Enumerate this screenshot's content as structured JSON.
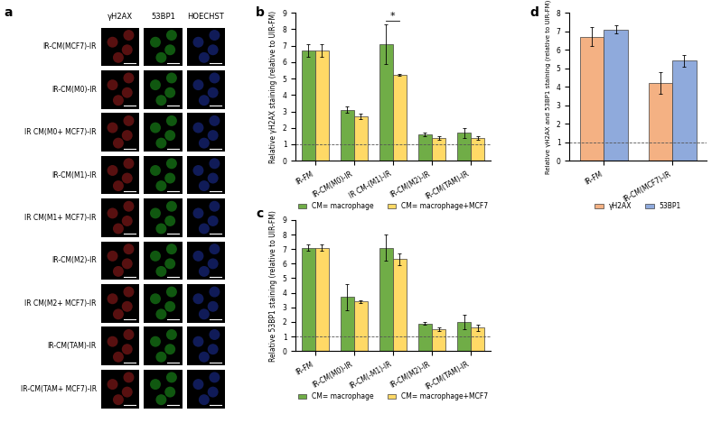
{
  "panel_labels": [
    "a",
    "b",
    "c",
    "d"
  ],
  "images": {
    "columns": [
      "γH2AX",
      "53BP1",
      "HOECHST"
    ],
    "rows": [
      "IR-CM(MCF7)-IR",
      "IR-CM(M0)-IR",
      "IR CM(M0+ MCF7)-IR",
      "IR-CM(M1)-IR",
      "IR CM(M1+ MCF7)-IR",
      "IR-CM(M2)-IR",
      "IR CM(M2+ MCF7)-IR",
      "IR-CM(TAM)-IR",
      "IR-CM(TAM+ MCF7)-IR"
    ]
  },
  "chart_data": [
    {
      "type": "bar",
      "y_label": "Relative γH2AX staining (relative to UIR-FM)",
      "categories": [
        "IR-FM",
        "IR-CM(M0)-IR",
        "IR CM-(M1)-IR",
        "IR-CM(M2)-IR",
        "IR-CM(TAM)-IR"
      ],
      "series": [
        {
          "name": "CM= macrophage",
          "color": "#70ad47",
          "values": [
            6.7,
            3.1,
            7.1,
            1.6,
            1.7
          ],
          "errors": [
            0.4,
            0.2,
            1.2,
            0.1,
            0.3
          ]
        },
        {
          "name": "CM= macrophage+MCF7",
          "color": "#ffd966",
          "values": [
            6.7,
            2.7,
            5.2,
            1.4,
            1.4
          ],
          "errors": [
            0.4,
            0.15,
            0.05,
            0.1,
            0.1
          ]
        }
      ],
      "ylim": [
        0,
        9
      ],
      "yticks": [
        0,
        1,
        2,
        3,
        4,
        5,
        6,
        7,
        8,
        9
      ],
      "legend": "bottom",
      "reference_line": 1,
      "annotations": [
        {
          "text": "*",
          "category": "IR CM-(M1)-IR",
          "y": 8.5
        }
      ]
    },
    {
      "type": "bar",
      "y_label": "Relative 53BP1 staining (relative to UIR-FM)",
      "categories": [
        "IR-FM",
        "IR-CM(M0)-IR",
        "IR-CM(-M1)-IR",
        "IR-CM(M2)-IR",
        "IR-CM(TAM)-IR"
      ],
      "series": [
        {
          "name": "CM= macrophage",
          "color": "#70ad47",
          "values": [
            7.1,
            3.7,
            7.1,
            1.9,
            2.0
          ],
          "errors": [
            0.2,
            0.9,
            0.9,
            0.1,
            0.5
          ]
        },
        {
          "name": "CM= macrophage+MCF7",
          "color": "#ffd966",
          "values": [
            7.1,
            3.4,
            6.3,
            1.5,
            1.6
          ],
          "errors": [
            0.2,
            0.1,
            0.4,
            0.1,
            0.2
          ]
        }
      ],
      "ylim": [
        0,
        9
      ],
      "yticks": [
        0,
        1,
        2,
        3,
        4,
        5,
        6,
        7,
        8,
        9
      ],
      "legend": "bottom",
      "reference_line": 1
    },
    {
      "type": "bar",
      "y_label": "Relative γH2AX and 53BP1 staining (relative to UIR-FM)",
      "categories": [
        "IR-FM",
        "IR-CM(MCF7)-IR"
      ],
      "series": [
        {
          "name": "γH2AX",
          "color": "#f4b183",
          "values": [
            6.7,
            4.2
          ],
          "errors": [
            0.5,
            0.6
          ]
        },
        {
          "name": "53BP1",
          "color": "#8faadc",
          "values": [
            7.1,
            5.4
          ],
          "errors": [
            0.2,
            0.3
          ]
        }
      ],
      "ylim": [
        0,
        8
      ],
      "yticks": [
        0,
        1,
        2,
        3,
        4,
        5,
        6,
        7,
        8
      ],
      "legend": "bottom",
      "reference_line": 1
    }
  ]
}
